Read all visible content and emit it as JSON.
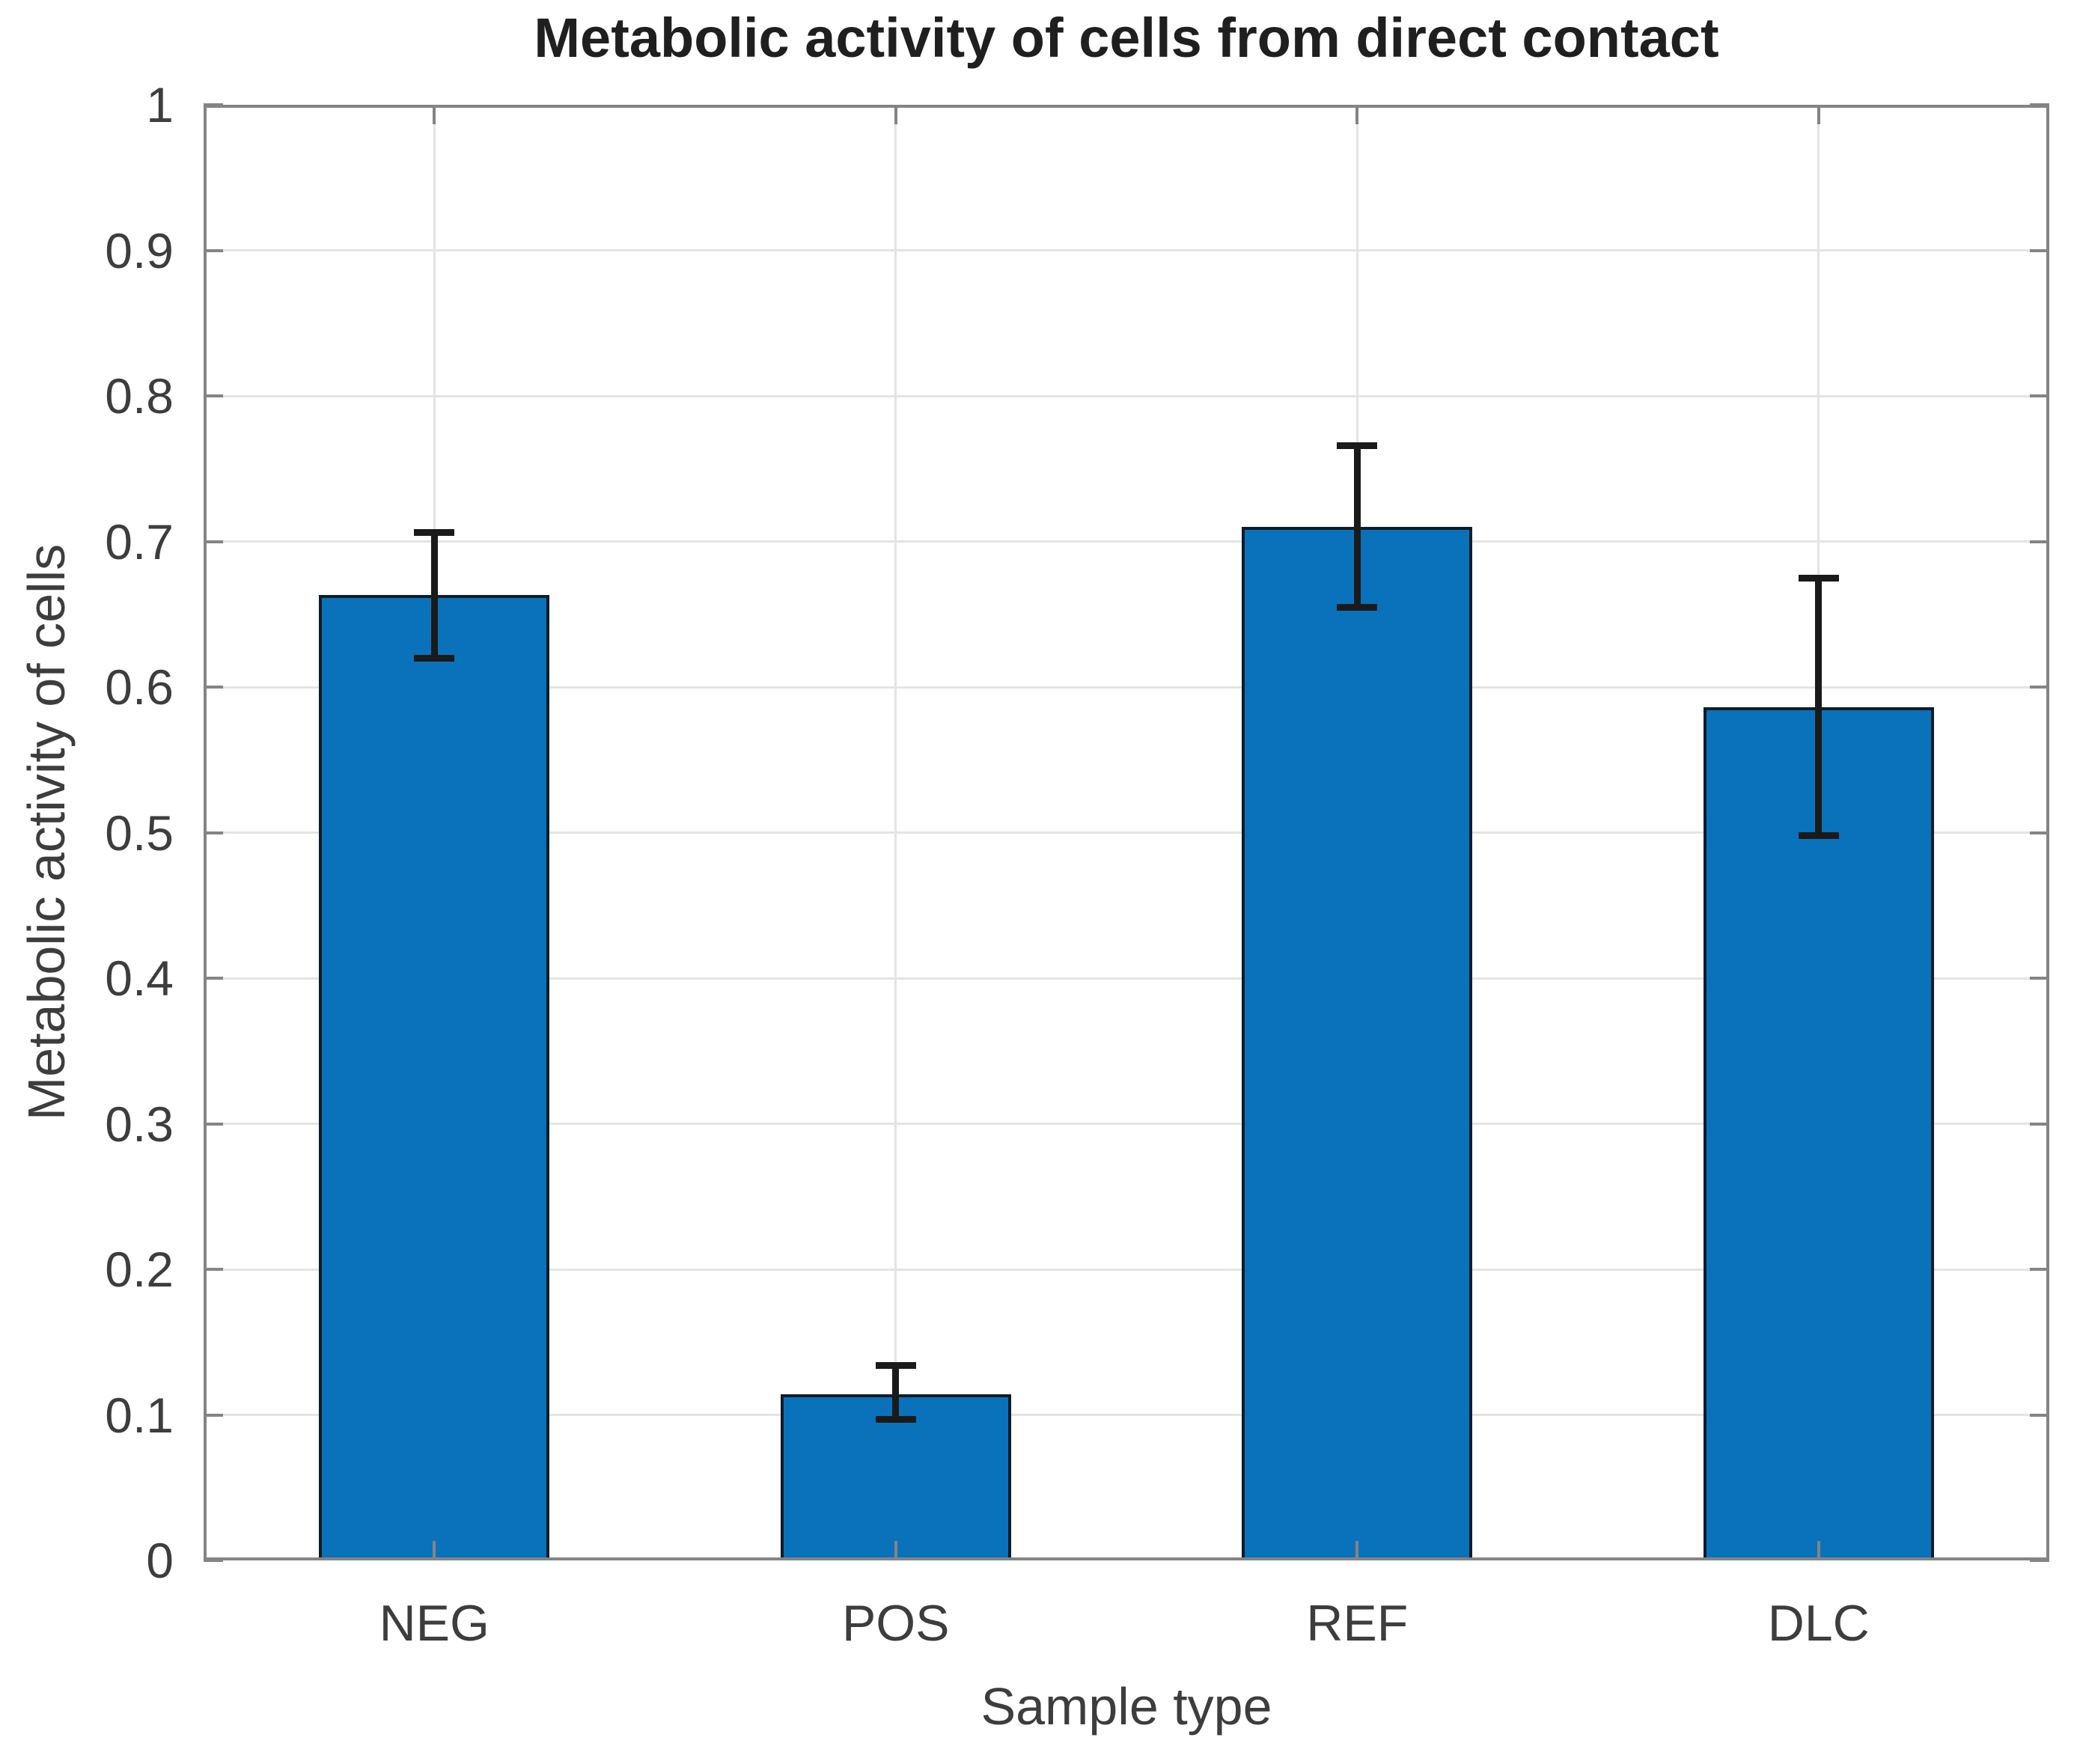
{
  "title": "Metabolic activity of cells from direct contact",
  "chart_data": {
    "type": "bar",
    "title": "Metabolic activity of cells from direct contact",
    "xlabel": "Sample type",
    "ylabel": "Metabolic activity of cells",
    "categories": [
      "NEG",
      "POS",
      "REF",
      "DLC"
    ],
    "values": [
      0.663,
      0.114,
      0.71,
      0.586
    ],
    "error_low": [
      0.62,
      0.097,
      0.655,
      0.498
    ],
    "error_high": [
      0.706,
      0.134,
      0.766,
      0.675
    ],
    "ylim": [
      0,
      1
    ],
    "yticks": [
      0,
      0.1,
      0.2,
      0.3,
      0.4,
      0.5,
      0.6,
      0.7,
      0.8,
      0.9,
      1
    ],
    "ytick_labels": [
      "0",
      "0.1",
      "0.2",
      "0.3",
      "0.4",
      "0.5",
      "0.6",
      "0.7",
      "0.8",
      "0.9",
      "1"
    ],
    "grid": true,
    "legend_position": "none",
    "bar_width_fraction": 0.5,
    "colors": {
      "bar_fill": "#0a72ba",
      "bar_edge": "#101c28",
      "error_bar": "#1a1a1a",
      "grid_line": "#e4e4e4",
      "axis_line": "#848484",
      "tick_text": "#3d3d3d",
      "title_text": "#1f1f1f"
    }
  }
}
